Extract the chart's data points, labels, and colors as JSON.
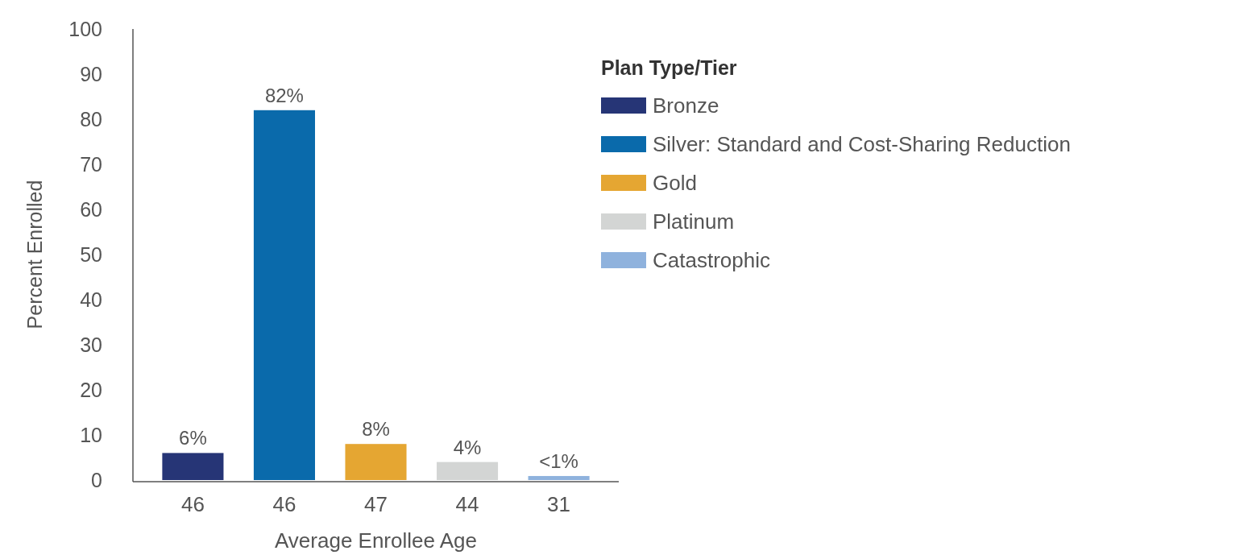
{
  "chart_data": {
    "type": "bar",
    "categories": [
      "46",
      "46",
      "47",
      "44",
      "31"
    ],
    "series": [
      {
        "name": "Bronze",
        "color": "#263576",
        "values": [
          6,
          null,
          null,
          null,
          null
        ]
      },
      {
        "name": "Silver: Standard and Cost-Sharing Reduction",
        "color": "#0a6aab",
        "values": [
          null,
          82,
          null,
          null,
          null
        ]
      },
      {
        "name": "Gold",
        "color": "#e5a632",
        "values": [
          null,
          null,
          8,
          null,
          null
        ]
      },
      {
        "name": "Platinum",
        "color": "#d3d5d4",
        "values": [
          null,
          null,
          null,
          4,
          null
        ]
      },
      {
        "name": "Catastrophic",
        "color": "#8fb2dd",
        "values": [
          null,
          null,
          null,
          null,
          0.9
        ]
      }
    ],
    "value_labels": [
      "6%",
      "82%",
      "8%",
      "4%",
      "<1%"
    ],
    "xlabel": "Average Enrollee Age",
    "ylabel": "Percent Enrolled",
    "legend_title": "Plan Type/Tier",
    "ylim": [
      0,
      100
    ],
    "yticks": [
      0,
      10,
      20,
      30,
      40,
      50,
      60,
      70,
      80,
      90,
      100
    ],
    "grid": false,
    "legend": "right"
  }
}
